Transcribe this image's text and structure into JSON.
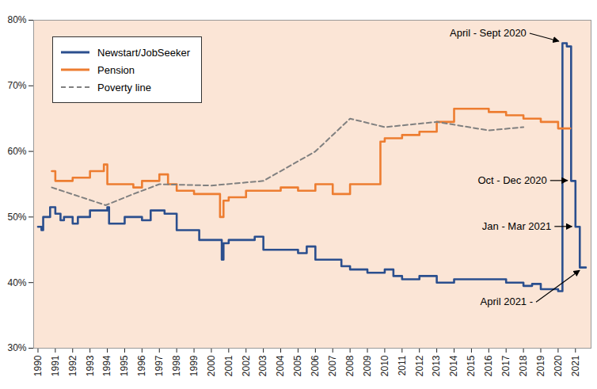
{
  "chart_data": {
    "type": "line",
    "xlim": [
      1989.75,
      2021.9
    ],
    "xticks": [
      1990,
      1991,
      1992,
      1993,
      1994,
      1995,
      1996,
      1997,
      1998,
      1999,
      2000,
      2001,
      2002,
      2003,
      2004,
      2005,
      2006,
      2007,
      2008,
      2009,
      2010,
      2011,
      2012,
      2013,
      2014,
      2015,
      2016,
      2017,
      2018,
      2019,
      2020,
      2021
    ],
    "ylim": [
      30,
      80
    ],
    "yticks": [
      {
        "value": 30,
        "label": "30%"
      },
      {
        "value": 40,
        "label": "40%"
      },
      {
        "value": 50,
        "label": "50%"
      },
      {
        "value": 60,
        "label": "60%"
      },
      {
        "value": 70,
        "label": "70%"
      },
      {
        "value": 80,
        "label": "80%"
      }
    ],
    "grid": false,
    "legend": "upper left",
    "series": [
      {
        "name": "Newstart/JobSeeker",
        "color": "#2b4f8e",
        "type": "step",
        "line_style": "solid",
        "x": [
          1990,
          1990.2,
          1990.3,
          1990.7,
          1991,
          1991.3,
          1991.5,
          1992,
          1992.3,
          1993,
          1994,
          1994.1,
          1995,
          1996,
          1996.5,
          1997,
          1997.3,
          1998,
          1999,
          1999.3,
          2000,
          2000.6,
          2000.7,
          2001,
          2002,
          2002.5,
          2003,
          2004,
          2005,
          2005.5,
          2006,
          2007,
          2007.5,
          2008,
          2009,
          2010,
          2010.5,
          2011,
          2012,
          2013,
          2014,
          2015,
          2016,
          2017,
          2018,
          2018.5,
          2019,
          2020,
          2020.25,
          2020.5,
          2020.75,
          2021,
          2021.25,
          2021.6
        ],
        "values": [
          48.5,
          48,
          50,
          51.5,
          50.5,
          49.5,
          50,
          49,
          50,
          51,
          51.5,
          49,
          50,
          49.5,
          51,
          51,
          50.5,
          48,
          48,
          46.5,
          46.5,
          43.5,
          46,
          46.5,
          46.5,
          47,
          45,
          45,
          44.5,
          45.5,
          43.5,
          43.5,
          42.5,
          42,
          41.5,
          42,
          41,
          40.5,
          41,
          40,
          40.5,
          40.5,
          40.5,
          40,
          39.5,
          39.8,
          39,
          38.7,
          76.5,
          76,
          55.5,
          48.5,
          42.3,
          42.3
        ]
      },
      {
        "name": "Pension",
        "color": "#ed7d31",
        "type": "step",
        "line_style": "solid",
        "x": [
          1990.8,
          1991,
          1992,
          1993,
          1993.8,
          1994,
          1995,
          1995.5,
          1996,
          1997,
          1997.5,
          1998,
          1999,
          2000,
          2000.5,
          2000.7,
          2001,
          2002,
          2003,
          2004,
          2005,
          2006,
          2007,
          2008,
          2009,
          2009.75,
          2010,
          2011,
          2012,
          2013,
          2014,
          2015,
          2016,
          2017,
          2018,
          2019,
          2020,
          2020.7
        ],
        "values": [
          57,
          55.5,
          56,
          57,
          58,
          55,
          55,
          54.5,
          55.5,
          56.5,
          55,
          54,
          53.5,
          53.5,
          50,
          52.5,
          53,
          54,
          54,
          54.5,
          54,
          55,
          53.5,
          55,
          55,
          61.5,
          62,
          62.5,
          63,
          64.5,
          66.5,
          66.5,
          66,
          65.5,
          65,
          64.5,
          63.5,
          63.5
        ]
      },
      {
        "name": "Poverty line",
        "color": "#808080",
        "type": "line",
        "line_style": "dashed",
        "x": [
          1990.8,
          1993.9,
          1995.5,
          1997,
          2000,
          2003,
          2006,
          2008,
          2010,
          2013,
          2016,
          2018
        ],
        "values": [
          54.5,
          51.8,
          53.5,
          55,
          54.8,
          55.5,
          60,
          65,
          63.7,
          64.5,
          63.2,
          63.7
        ]
      }
    ],
    "annotations": [
      {
        "text": "April - Sept 2020",
        "x": 2020.25,
        "y": 76.5
      },
      {
        "text": "Oct - Dec 2020",
        "x": 2020.75,
        "y": 55.5
      },
      {
        "text": "Jan - Mar 2021",
        "x": 2021,
        "y": 48.5
      },
      {
        "text": "April 2021 -",
        "x": 2021.4,
        "y": 42.3
      }
    ]
  }
}
